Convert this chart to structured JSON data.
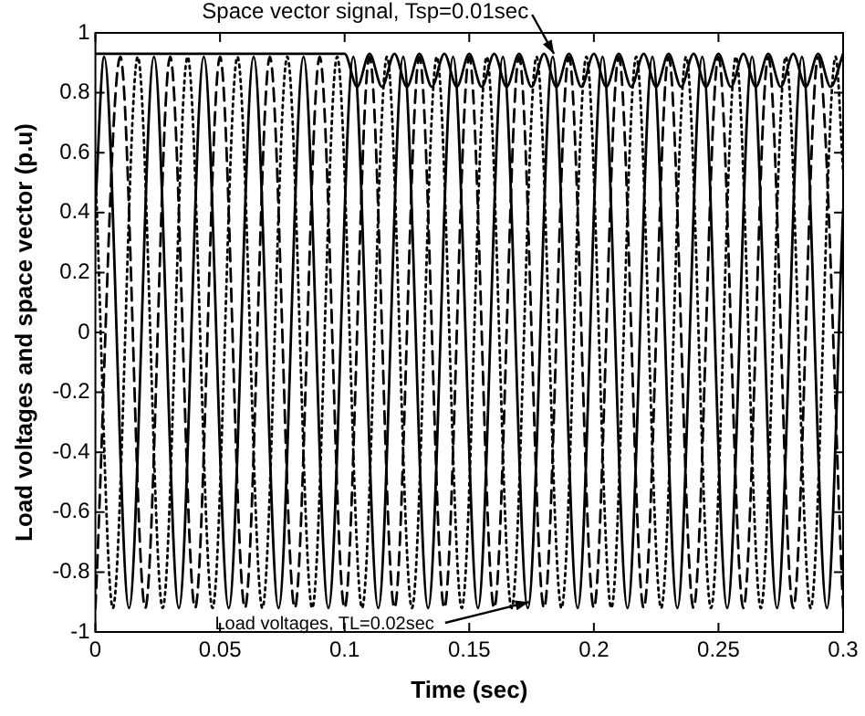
{
  "chart_data": {
    "type": "line",
    "xlabel": "Time (sec)",
    "ylabel": "Load voltages and space vector (p.u)",
    "xlim": [
      0,
      0.3
    ],
    "xticks": [
      0,
      0.05,
      0.1,
      0.15,
      0.2,
      0.25,
      0.3
    ],
    "ylim": [
      -1,
      1
    ],
    "yticks": [
      -1,
      -0.8,
      -0.6,
      -0.4,
      -0.2,
      0,
      0.2,
      0.4,
      0.6,
      0.8,
      1
    ],
    "grid": false,
    "legend": false,
    "marker": "none",
    "annotations": [
      {
        "text": "Space vector signal, Tsp=0.01sec",
        "x": 0.184,
        "y": 0.93
      },
      {
        "text": "Load voltages, TL=0.02sec",
        "x": 0.174,
        "y": -0.9
      }
    ],
    "series": [
      {
        "color": "#000000",
        "line_style": "solid",
        "x": [
          0,
          0.0035,
          0.0135,
          0.0235,
          0.0335,
          0.0435,
          0.0535,
          0.0635,
          0.0735,
          0.0835,
          0.0935,
          0.1035,
          0.1135,
          0.1235,
          0.1335,
          0.1435,
          0.1535,
          0.1635,
          0.1735,
          0.1835,
          0.1935,
          0.2035,
          0.2135,
          0.2235,
          0.2335,
          0.2435,
          0.2535,
          0.2635,
          0.2735,
          0.2835,
          0.2935,
          0.3
        ],
        "values": [
          0.42,
          0.92,
          -0.92,
          0.92,
          -0.92,
          0.92,
          -0.92,
          0.92,
          -0.92,
          0.92,
          -0.92,
          0.92,
          -0.92,
          0.92,
          -0.92,
          0.92,
          -0.92,
          0.92,
          -0.92,
          0.92,
          -0.92,
          0.92,
          -0.92,
          0.92,
          -0.92,
          0.92,
          -0.92,
          0.92,
          -0.92,
          0.92,
          -0.92,
          0.41
        ]
      },
      {
        "color": "#000000",
        "line_style": "dashed",
        "x": [
          0,
          0.01,
          0.02,
          0.03,
          0.04,
          0.05,
          0.06,
          0.07,
          0.08,
          0.09,
          0.1,
          0.11,
          0.12,
          0.13,
          0.14,
          0.15,
          0.16,
          0.17,
          0.18,
          0.19,
          0.2,
          0.21,
          0.22,
          0.23,
          0.24,
          0.25,
          0.26,
          0.27,
          0.28,
          0.29,
          0.3
        ],
        "values": [
          -0.92,
          0.92,
          -0.92,
          0.92,
          -0.92,
          0.92,
          -0.92,
          0.92,
          -0.92,
          0.92,
          -0.92,
          0.92,
          -0.92,
          0.92,
          -0.92,
          0.92,
          -0.92,
          0.92,
          -0.92,
          0.92,
          -0.92,
          0.92,
          -0.92,
          0.92,
          -0.92,
          0.92,
          -0.92,
          0.92,
          -0.92,
          0.92,
          -0.92
        ]
      },
      {
        "color": "#000000",
        "line_style": "dotted",
        "x": [
          0,
          0.007,
          0.017,
          0.027,
          0.037,
          0.047,
          0.057,
          0.067,
          0.077,
          0.087,
          0.097,
          0.107,
          0.117,
          0.127,
          0.137,
          0.147,
          0.157,
          0.167,
          0.177,
          0.187,
          0.197,
          0.207,
          0.217,
          0.227,
          0.237,
          0.247,
          0.257,
          0.267,
          0.277,
          0.287,
          0.297,
          0.3
        ],
        "values": [
          0.54,
          -0.92,
          0.92,
          -0.92,
          0.92,
          -0.92,
          0.92,
          -0.92,
          0.92,
          -0.92,
          0.92,
          -0.92,
          0.92,
          -0.92,
          0.92,
          -0.92,
          0.92,
          -0.92,
          0.92,
          -0.92,
          0.92,
          -0.92,
          0.92,
          -0.92,
          0.92,
          -0.92,
          0.92,
          -0.92,
          0.92,
          -0.92,
          0.92,
          0.54
        ]
      },
      {
        "color": "#000000",
        "line_style": "solid",
        "x": [
          0,
          0.1,
          0.105,
          0.11,
          0.115,
          0.12,
          0.125,
          0.13,
          0.135,
          0.14,
          0.145,
          0.15,
          0.155,
          0.16,
          0.165,
          0.17,
          0.175,
          0.18,
          0.185,
          0.19,
          0.195,
          0.2,
          0.205,
          0.21,
          0.215,
          0.22,
          0.225,
          0.23,
          0.235,
          0.24,
          0.245,
          0.25,
          0.255,
          0.26,
          0.265,
          0.27,
          0.275,
          0.28,
          0.285,
          0.29,
          0.295,
          0.3
        ],
        "values": [
          0.93,
          0.93,
          0.82,
          0.93,
          0.82,
          0.93,
          0.82,
          0.93,
          0.82,
          0.93,
          0.82,
          0.93,
          0.82,
          0.93,
          0.82,
          0.93,
          0.82,
          0.93,
          0.82,
          0.93,
          0.82,
          0.93,
          0.82,
          0.93,
          0.82,
          0.93,
          0.82,
          0.93,
          0.82,
          0.93,
          0.82,
          0.93,
          0.82,
          0.93,
          0.82,
          0.93,
          0.82,
          0.93,
          0.82,
          0.93,
          0.82,
          0.93
        ]
      }
    ]
  }
}
